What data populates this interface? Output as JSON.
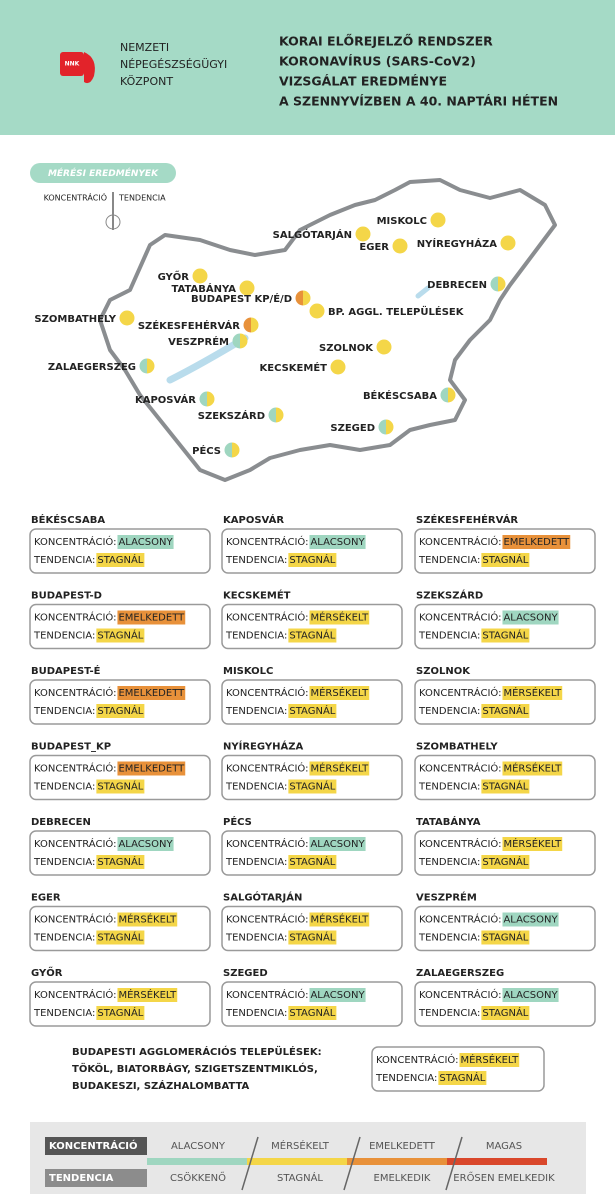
{
  "header": {
    "logo": "NNK",
    "org": [
      "NEMZETI",
      "NÉPEGÉSZSÉGÜGYI",
      "KÖZPONT"
    ],
    "title": [
      "KORAI ELŐREJELZŐ RENDSZER",
      "KORONAVÍRUS (SARS-CoV2)",
      "VIZSGÁLAT EREDMÉNYE",
      "A SZENNYVÍZBEN A 40. NAPTÁRI HÉTEN"
    ]
  },
  "map": {
    "badge": "MÉRÉSI EREDMÉNYEK",
    "key": [
      "KONCENTRÁCIÓ",
      "TENDENCIA"
    ],
    "points": [
      {
        "label": "MISKOLC",
        "concentration": "MÉRSÉKELT",
        "tendency": "STAGNÁL"
      },
      {
        "label": "SALGÓTARJÁN",
        "concentration": "MÉRSÉKELT",
        "tendency": "STAGNÁL"
      },
      {
        "label": "EGER",
        "concentration": "MÉRSÉKELT",
        "tendency": "STAGNÁL"
      },
      {
        "label": "NYÍREGYHÁZA",
        "concentration": "MÉRSÉKELT",
        "tendency": "STAGNÁL"
      },
      {
        "label": "GYŐR",
        "concentration": "MÉRSÉKELT",
        "tendency": "STAGNÁL"
      },
      {
        "label": "TATABÁNYA",
        "concentration": "MÉRSÉKELT",
        "tendency": "STAGNÁL"
      },
      {
        "label": "BUDAPEST KP/É/D",
        "concentration": "EMELKEDETT",
        "tendency": "STAGNÁL"
      },
      {
        "label": "BP. AGGL. TELEPÜLÉSEK",
        "concentration": "MÉRSÉKELT",
        "tendency": "STAGNÁL"
      },
      {
        "label": "SZOMBATHELY",
        "concentration": "MÉRSÉKELT",
        "tendency": "STAGNÁL"
      },
      {
        "label": "DEBRECEN",
        "concentration": "ALACSONY",
        "tendency": "STAGNÁL"
      },
      {
        "label": "SZÉKESFEHÉRVÁR",
        "concentration": "EMELKEDETT",
        "tendency": "STAGNÁL"
      },
      {
        "label": "VESZPRÉM",
        "concentration": "ALACSONY",
        "tendency": "STAGNÁL"
      },
      {
        "label": "SZOLNOK",
        "concentration": "MÉRSÉKELT",
        "tendency": "STAGNÁL"
      },
      {
        "label": "ZALAEGERSZEG",
        "concentration": "ALACSONY",
        "tendency": "STAGNÁL"
      },
      {
        "label": "KECSKEMÉT",
        "concentration": "MÉRSÉKELT",
        "tendency": "STAGNÁL"
      },
      {
        "label": "BÉKÉSCSABA",
        "concentration": "ALACSONY",
        "tendency": "STAGNÁL"
      },
      {
        "label": "KAPOSVÁR",
        "concentration": "ALACSONY",
        "tendency": "STAGNÁL"
      },
      {
        "label": "SZEKSZÁRD",
        "concentration": "ALACSONY",
        "tendency": "STAGNÁL"
      },
      {
        "label": "SZEGED",
        "concentration": "ALACSONY",
        "tendency": "STAGNÁL"
      },
      {
        "label": "PÉCS",
        "concentration": "ALACSONY",
        "tendency": "STAGNÁL"
      }
    ]
  },
  "cards": {
    "concentration_label": "KONCENTRÁCIÓ:",
    "tendency_label": "TENDENCIA:",
    "items": [
      {
        "name": "BÉKÉSCSABA",
        "concentration": "ALACSONY",
        "tendency": "STAGNÁL"
      },
      {
        "name": "BUDAPEST-D",
        "concentration": "EMELKEDETT",
        "tendency": "STAGNÁL"
      },
      {
        "name": "BUDAPEST-É",
        "concentration": "EMELKEDETT",
        "tendency": "STAGNÁL"
      },
      {
        "name": "BUDAPEST_KP",
        "concentration": "EMELKEDETT",
        "tendency": "STAGNÁL"
      },
      {
        "name": "DEBRECEN",
        "concentration": "ALACSONY",
        "tendency": "STAGNÁL"
      },
      {
        "name": "EGER",
        "concentration": "MÉRSÉKELT",
        "tendency": "STAGNÁL"
      },
      {
        "name": "GYŐR",
        "concentration": "MÉRSÉKELT",
        "tendency": "STAGNÁL"
      },
      {
        "name": "KAPOSVÁR",
        "concentration": "ALACSONY",
        "tendency": "STAGNÁL"
      },
      {
        "name": "KECSKEMÉT",
        "concentration": "MÉRSÉKELT",
        "tendency": "STAGNÁL"
      },
      {
        "name": "MISKOLC",
        "concentration": "MÉRSÉKELT",
        "tendency": "STAGNÁL"
      },
      {
        "name": "NYÍREGYHÁZA",
        "concentration": "MÉRSÉKELT",
        "tendency": "STAGNÁL"
      },
      {
        "name": "PÉCS",
        "concentration": "ALACSONY",
        "tendency": "STAGNÁL"
      },
      {
        "name": "SALGÓTARJÁN",
        "concentration": "MÉRSÉKELT",
        "tendency": "STAGNÁL"
      },
      {
        "name": "SZEGED",
        "concentration": "ALACSONY",
        "tendency": "STAGNÁL"
      },
      {
        "name": "SZÉKESFEHÉRVÁR",
        "concentration": "EMELKEDETT",
        "tendency": "STAGNÁL"
      },
      {
        "name": "SZEKSZÁRD",
        "concentration": "ALACSONY",
        "tendency": "STAGNÁL"
      },
      {
        "name": "SZOLNOK",
        "concentration": "MÉRSÉKELT",
        "tendency": "STAGNÁL"
      },
      {
        "name": "SZOMBATHELY",
        "concentration": "MÉRSÉKELT",
        "tendency": "STAGNÁL"
      },
      {
        "name": "TATABÁNYA",
        "concentration": "MÉRSÉKELT",
        "tendency": "STAGNÁL"
      },
      {
        "name": "VESZPRÉM",
        "concentration": "ALACSONY",
        "tendency": "STAGNÁL"
      },
      {
        "name": "ZALAEGERSZEG",
        "concentration": "ALACSONY",
        "tendency": "STAGNÁL"
      }
    ]
  },
  "agglomeration": {
    "lines": [
      "BUDAPESTI AGGLOMERÁCIÓS TELEPÜLÉSEK:",
      "TÖKÖL, BIATORBÁGY, SZIGETSZENTMIKLÓS,",
      "BUDAKESZI, SZÁZHALOMBATTA"
    ],
    "concentration": "MÉRSÉKELT",
    "tendency": "STAGNÁL"
  },
  "legend": {
    "concentration": {
      "label": "KONCENTRÁCIÓ",
      "levels": [
        {
          "text": "ALACSONY",
          "color": "#9fd6c0"
        },
        {
          "text": "MÉRSÉKELT",
          "color": "#f4d648"
        },
        {
          "text": "EMELKEDETT",
          "color": "#e8913a"
        },
        {
          "text": "MAGAS",
          "color": "#d9472b"
        }
      ]
    },
    "tendency": {
      "label": "TENDENCIA",
      "levels": [
        {
          "text": "CSÖKKENŐ",
          "color": "#9fd6c0"
        },
        {
          "text": "STAGNÁL",
          "color": "#f4d648"
        },
        {
          "text": "EMELKEDIK",
          "color": "#e8913a"
        },
        {
          "text": "ERŐSEN EMELKEDIK",
          "color": "#d9472b"
        }
      ]
    }
  }
}
